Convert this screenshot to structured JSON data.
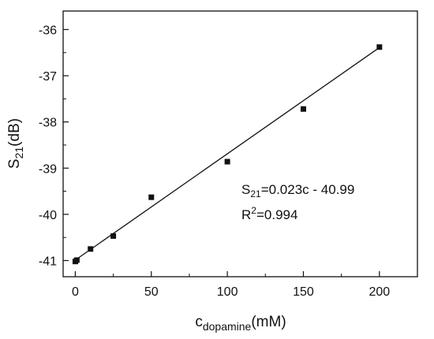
{
  "chart_data": {
    "type": "scatter",
    "xlabel": {
      "base": "c",
      "sub": "dopamine",
      "unit": "(mM)"
    },
    "ylabel": {
      "base": "S",
      "sub": "21",
      "unit": "(dB)"
    },
    "xlim": [
      -8,
      225
    ],
    "ylim": [
      -41.35,
      -35.6
    ],
    "xticks": [
      0,
      50,
      100,
      150,
      200
    ],
    "yticks": [
      -41,
      -40,
      -39,
      -38,
      -37,
      -36
    ],
    "grid": false,
    "legend": "none",
    "points": [
      {
        "x": 0,
        "y": -41.02
      },
      {
        "x": 1,
        "y": -40.99
      },
      {
        "x": 10,
        "y": -40.75
      },
      {
        "x": 25,
        "y": -40.47
      },
      {
        "x": 50,
        "y": -39.63
      },
      {
        "x": 100,
        "y": -38.86
      },
      {
        "x": 150,
        "y": -37.72
      },
      {
        "x": 200,
        "y": -36.38
      }
    ],
    "fit_line": {
      "slope": 0.023,
      "intercept": -40.99,
      "x_range": [
        0,
        200
      ]
    },
    "annotations": {
      "equation": {
        "lhs": "S",
        "sub": "21",
        "rhs": "=0.023c - 40.99"
      },
      "r2": {
        "base": "R",
        "sup": "2",
        "rest": "=0.994"
      }
    },
    "colors": {
      "marker": "#111111",
      "line": "#111111",
      "axis": "#111111"
    }
  }
}
